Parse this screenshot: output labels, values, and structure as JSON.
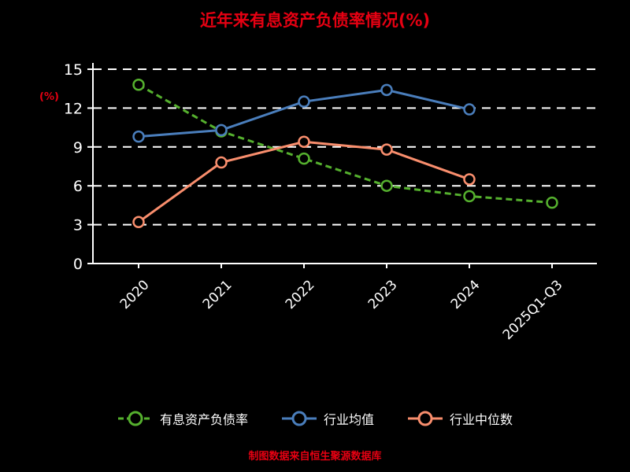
{
  "title": "近年来有息资产负债率情况(%)",
  "ylabel": "(%)",
  "footer": "制图数据来自恒生聚源数据库",
  "colors": {
    "background": "#000000",
    "title": "#e60012",
    "footer": "#e60012",
    "axis": "#ffffff",
    "grid": "#ffffff",
    "tick_text": "#ffffff",
    "series_green": "#55b02e",
    "series_blue": "#4a7ebc",
    "series_salmon": "#f98e6d"
  },
  "chart_data": {
    "type": "line",
    "title": "近年来有息资产负债率情况(%)",
    "xlabel": "",
    "ylabel": "(%)",
    "categories": [
      "2020",
      "2021",
      "2022",
      "2023",
      "2024",
      "2025Q1-Q3"
    ],
    "yticks": [
      0,
      3,
      6,
      9,
      12,
      15
    ],
    "ylim": [
      0,
      15
    ],
    "grid": true,
    "legend_position": "bottom",
    "series": [
      {
        "name": "有息资产负债率",
        "color": "#55b02e",
        "dash": true,
        "values": [
          13.8,
          10.2,
          8.1,
          6.0,
          5.2,
          4.7
        ]
      },
      {
        "name": "行业均值",
        "color": "#4a7ebc",
        "dash": false,
        "values": [
          9.8,
          10.3,
          12.5,
          13.4,
          11.9,
          null
        ]
      },
      {
        "name": "行业中位数",
        "color": "#f98e6d",
        "dash": false,
        "values": [
          3.2,
          7.8,
          9.4,
          8.8,
          6.5,
          null
        ]
      }
    ]
  }
}
